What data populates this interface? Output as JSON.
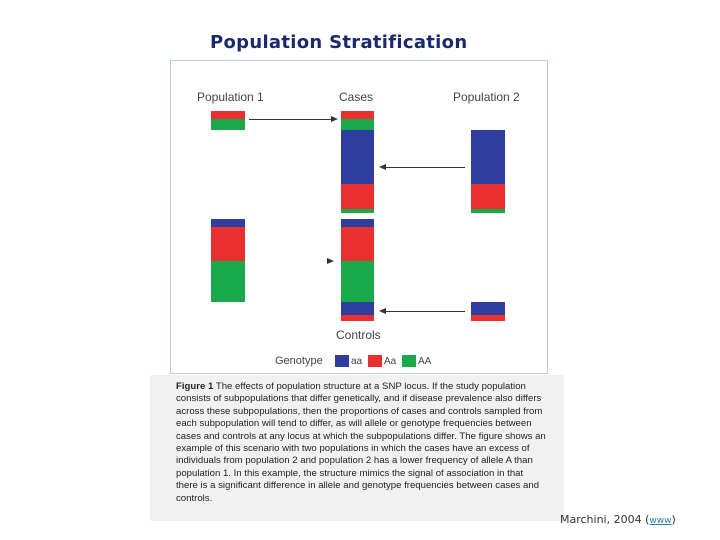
{
  "slide": {
    "title": "Population Stratification",
    "credit_text": "Marchini, 2004",
    "credit_paren_open": "(",
    "credit_link": "www",
    "credit_paren_close": ")"
  },
  "figure": {
    "labels": {
      "population1": "Population 1",
      "cases": "Cases",
      "population2": "Population 2",
      "controls": "Controls"
    },
    "legend": {
      "title": "Genotype",
      "items": [
        {
          "label": "aa",
          "color": "#2e3d9e"
        },
        {
          "label": "Aa",
          "color": "#e8312f"
        },
        {
          "label": "AA",
          "color": "#19a94b"
        }
      ]
    },
    "colors": {
      "aa": "#2e3d9e",
      "Aa": "#e8312f",
      "AA": "#19a94b"
    }
  },
  "caption": {
    "figure_label": "Figure 1",
    "text": "The effects of population structure at a SNP locus. If the study population consists of subpopulations that differ genetically, and if disease prevalence also differs across these subpopulations, then the proportions of cases and controls sampled from each subpopulation will tend to differ, as will allele or genotype frequencies between cases and controls at any locus at which the subpopulations differ. The figure shows an example of this scenario with two populations in which the cases have an excess of individuals from population 2 and population 2 has a lower frequency of allele A than population 1. In this example, the structure mimics the signal of association in that there is a significant difference in allele and genotype frequencies between cases and controls."
  }
}
